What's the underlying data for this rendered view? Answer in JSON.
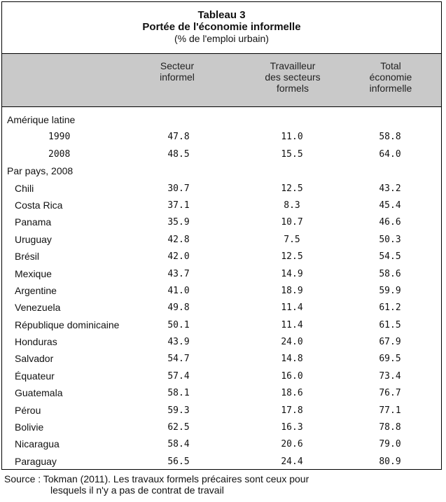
{
  "table": {
    "title": "Tableau 3",
    "subtitle": "Portée de l'économie informelle",
    "unit": "(% de l'emploi urbain)",
    "columns": [
      [
        "Secteur",
        "informel"
      ],
      [
        "Travailleur",
        "des secteurs",
        "formels"
      ],
      [
        "Total",
        "économie",
        "informelle"
      ]
    ],
    "latam": {
      "label": "Amérique latine",
      "rows": [
        {
          "label": "1990",
          "v1": "47.8",
          "v2": "11.0",
          "v3": "58.8"
        },
        {
          "label": "2008",
          "v1": "48.5",
          "v2": "15.5",
          "v3": "64.0"
        }
      ]
    },
    "by_country": {
      "label": "Par pays, 2008",
      "rows": [
        {
          "label": "Chili",
          "v1": "30.7",
          "v2": "12.5",
          "v3": "43.2"
        },
        {
          "label": "Costa Rica",
          "v1": "37.1",
          "v2": "8.3",
          "v3": "45.4"
        },
        {
          "label": "Panama",
          "v1": "35.9",
          "v2": "10.7",
          "v3": "46.6"
        },
        {
          "label": "Uruguay",
          "v1": "42.8",
          "v2": "7.5",
          "v3": "50.3"
        },
        {
          "label": "Brésil",
          "v1": "42.0",
          "v2": "12.5",
          "v3": "54.5"
        },
        {
          "label": "Mexique",
          "v1": "43.7",
          "v2": "14.9",
          "v3": "58.6"
        },
        {
          "label": "Argentine",
          "v1": "41.0",
          "v2": "18.9",
          "v3": "59.9"
        },
        {
          "label": "Venezuela",
          "v1": "49.8",
          "v2": "11.4",
          "v3": "61.2"
        },
        {
          "label": "République dominicaine",
          "v1": "50.1",
          "v2": "11.4",
          "v3": "61.5"
        },
        {
          "label": "Honduras",
          "v1": "43.9",
          "v2": "24.0",
          "v3": "67.9"
        },
        {
          "label": "Salvador",
          "v1": "54.7",
          "v2": "14.8",
          "v3": "69.5"
        },
        {
          "label": "Équateur",
          "v1": "57.4",
          "v2": "16.0",
          "v3": "73.4"
        },
        {
          "label": "Guatemala",
          "v1": "58.1",
          "v2": "18.6",
          "v3": "76.7"
        },
        {
          "label": "Pérou",
          "v1": "59.3",
          "v2": "17.8",
          "v3": "77.1"
        },
        {
          "label": "Bolivie",
          "v1": "62.5",
          "v2": "16.3",
          "v3": "78.8"
        },
        {
          "label": "Nicaragua",
          "v1": "58.4",
          "v2": "20.6",
          "v3": "79.0"
        },
        {
          "label": "Paraguay",
          "v1": "56.5",
          "v2": "24.4",
          "v3": "80.9"
        }
      ]
    }
  },
  "source": {
    "line1": "Source : Tokman (2011). Les travaux formels précaires sont ceux pour",
    "line2": "lesquels il n'y a pas de contrat de travail"
  }
}
